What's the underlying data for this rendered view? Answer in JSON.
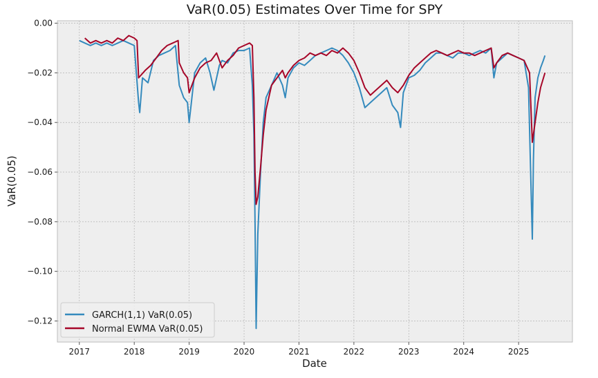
{
  "chart_data": {
    "type": "line",
    "title": "VaR(0.05) Estimates Over Time for SPY",
    "xlabel": "Date",
    "ylabel": "VaR(0.05)",
    "xlim": [
      2016.6,
      2025.98
    ],
    "ylim": [
      -0.1285,
      0.001
    ],
    "x_ticks": [
      {
        "value": 2017,
        "label": "2017"
      },
      {
        "value": 2018,
        "label": "2018"
      },
      {
        "value": 2019,
        "label": "2019"
      },
      {
        "value": 2020,
        "label": "2020"
      },
      {
        "value": 2021,
        "label": "2021"
      },
      {
        "value": 2022,
        "label": "2022"
      },
      {
        "value": 2023,
        "label": "2023"
      },
      {
        "value": 2024,
        "label": "2024"
      },
      {
        "value": 2025,
        "label": "2025"
      }
    ],
    "y_ticks": [
      {
        "value": 0.0,
        "label": "0.00"
      },
      {
        "value": -0.02,
        "label": "−0.02"
      },
      {
        "value": -0.04,
        "label": "−0.04"
      },
      {
        "value": -0.06,
        "label": "−0.06"
      },
      {
        "value": -0.08,
        "label": "−0.08"
      },
      {
        "value": -0.1,
        "label": "−0.10"
      },
      {
        "value": -0.12,
        "label": "−0.12"
      }
    ],
    "grid": true,
    "legend_position": "lower-left",
    "series": [
      {
        "name": "GARCH(1,1) VaR(0.05)",
        "color": "#348ABD",
        "x": [
          2017.0,
          2017.1,
          2017.2,
          2017.3,
          2017.4,
          2017.5,
          2017.6,
          2017.7,
          2017.8,
          2017.9,
          2018.0,
          2018.08,
          2018.1,
          2018.15,
          2018.25,
          2018.35,
          2018.45,
          2018.55,
          2018.65,
          2018.75,
          2018.82,
          2018.9,
          2018.97,
          2019.0,
          2019.1,
          2019.2,
          2019.3,
          2019.38,
          2019.45,
          2019.55,
          2019.6,
          2019.7,
          2019.8,
          2019.9,
          2020.0,
          2020.1,
          2020.15,
          2020.18,
          2020.2,
          2020.22,
          2020.25,
          2020.3,
          2020.35,
          2020.4,
          2020.5,
          2020.6,
          2020.7,
          2020.75,
          2020.8,
          2020.9,
          2021.0,
          2021.1,
          2021.2,
          2021.3,
          2021.4,
          2021.5,
          2021.6,
          2021.7,
          2021.8,
          2021.9,
          2022.0,
          2022.1,
          2022.2,
          2022.3,
          2022.4,
          2022.5,
          2022.6,
          2022.7,
          2022.8,
          2022.85,
          2022.9,
          2023.0,
          2023.1,
          2023.2,
          2023.3,
          2023.4,
          2023.5,
          2023.6,
          2023.7,
          2023.8,
          2023.9,
          2024.0,
          2024.1,
          2024.2,
          2024.3,
          2024.4,
          2024.5,
          2024.55,
          2024.6,
          2024.7,
          2024.8,
          2024.9,
          2025.0,
          2025.1,
          2025.18,
          2025.25,
          2025.27,
          2025.3,
          2025.35,
          2025.4,
          2025.45,
          2025.48
        ],
        "values": [
          -0.007,
          -0.008,
          -0.009,
          -0.008,
          -0.009,
          -0.008,
          -0.009,
          -0.008,
          -0.007,
          -0.008,
          -0.009,
          -0.032,
          -0.036,
          -0.022,
          -0.024,
          -0.015,
          -0.013,
          -0.012,
          -0.011,
          -0.009,
          -0.025,
          -0.03,
          -0.032,
          -0.04,
          -0.02,
          -0.016,
          -0.014,
          -0.02,
          -0.027,
          -0.017,
          -0.015,
          -0.016,
          -0.012,
          -0.011,
          -0.011,
          -0.01,
          -0.025,
          -0.045,
          -0.08,
          -0.123,
          -0.085,
          -0.06,
          -0.04,
          -0.03,
          -0.025,
          -0.02,
          -0.025,
          -0.03,
          -0.022,
          -0.018,
          -0.016,
          -0.017,
          -0.015,
          -0.013,
          -0.012,
          -0.011,
          -0.01,
          -0.011,
          -0.013,
          -0.016,
          -0.02,
          -0.026,
          -0.034,
          -0.032,
          -0.03,
          -0.028,
          -0.026,
          -0.033,
          -0.036,
          -0.042,
          -0.028,
          -0.022,
          -0.021,
          -0.019,
          -0.016,
          -0.014,
          -0.012,
          -0.012,
          -0.013,
          -0.014,
          -0.012,
          -0.012,
          -0.013,
          -0.012,
          -0.011,
          -0.012,
          -0.01,
          -0.022,
          -0.016,
          -0.014,
          -0.012,
          -0.013,
          -0.014,
          -0.015,
          -0.026,
          -0.087,
          -0.055,
          -0.03,
          -0.022,
          -0.018,
          -0.015,
          -0.013
        ]
      },
      {
        "name": "Normal EWMA VaR(0.05)",
        "color": "#A60628",
        "x": [
          2017.1,
          2017.2,
          2017.3,
          2017.4,
          2017.5,
          2017.6,
          2017.7,
          2017.8,
          2017.9,
          2018.0,
          2018.05,
          2018.08,
          2018.12,
          2018.2,
          2018.3,
          2018.4,
          2018.5,
          2018.6,
          2018.7,
          2018.8,
          2018.82,
          2018.9,
          2018.97,
          2019.0,
          2019.1,
          2019.2,
          2019.3,
          2019.4,
          2019.5,
          2019.6,
          2019.7,
          2019.8,
          2019.9,
          2020.0,
          2020.1,
          2020.15,
          2020.18,
          2020.2,
          2020.22,
          2020.25,
          2020.3,
          2020.35,
          2020.4,
          2020.45,
          2020.5,
          2020.6,
          2020.7,
          2020.75,
          2020.8,
          2020.9,
          2021.0,
          2021.1,
          2021.2,
          2021.3,
          2021.4,
          2021.5,
          2021.6,
          2021.7,
          2021.8,
          2021.9,
          2022.0,
          2022.1,
          2022.2,
          2022.3,
          2022.4,
          2022.5,
          2022.6,
          2022.7,
          2022.8,
          2022.9,
          2023.0,
          2023.1,
          2023.2,
          2023.3,
          2023.4,
          2023.5,
          2023.6,
          2023.7,
          2023.8,
          2023.9,
          2024.0,
          2024.1,
          2024.2,
          2024.3,
          2024.4,
          2024.5,
          2024.55,
          2024.6,
          2024.7,
          2024.8,
          2024.9,
          2025.0,
          2025.1,
          2025.2,
          2025.25,
          2025.3,
          2025.35,
          2025.4,
          2025.48
        ],
        "values": [
          -0.006,
          -0.008,
          -0.007,
          -0.008,
          -0.007,
          -0.008,
          -0.006,
          -0.007,
          -0.005,
          -0.006,
          -0.007,
          -0.022,
          -0.021,
          -0.019,
          -0.017,
          -0.014,
          -0.011,
          -0.009,
          -0.008,
          -0.007,
          -0.016,
          -0.02,
          -0.022,
          -0.028,
          -0.022,
          -0.018,
          -0.016,
          -0.015,
          -0.012,
          -0.018,
          -0.015,
          -0.013,
          -0.01,
          -0.009,
          -0.008,
          -0.009,
          -0.03,
          -0.06,
          -0.073,
          -0.07,
          -0.058,
          -0.045,
          -0.035,
          -0.03,
          -0.025,
          -0.022,
          -0.019,
          -0.022,
          -0.02,
          -0.017,
          -0.015,
          -0.014,
          -0.012,
          -0.013,
          -0.012,
          -0.013,
          -0.011,
          -0.012,
          -0.01,
          -0.012,
          -0.015,
          -0.02,
          -0.026,
          -0.029,
          -0.027,
          -0.025,
          -0.023,
          -0.026,
          -0.028,
          -0.025,
          -0.021,
          -0.018,
          -0.016,
          -0.014,
          -0.012,
          -0.011,
          -0.012,
          -0.013,
          -0.012,
          -0.011,
          -0.012,
          -0.012,
          -0.013,
          -0.012,
          -0.011,
          -0.01,
          -0.018,
          -0.016,
          -0.013,
          -0.012,
          -0.013,
          -0.014,
          -0.015,
          -0.02,
          -0.048,
          -0.04,
          -0.032,
          -0.026,
          -0.02
        ]
      }
    ]
  }
}
